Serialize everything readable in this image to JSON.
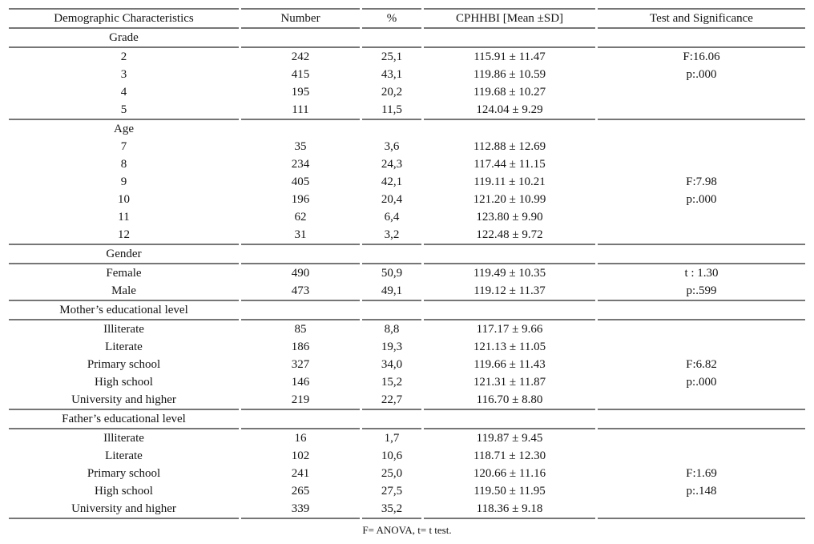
{
  "table": {
    "columns": [
      "Demographic Characteristics",
      "Number",
      "%",
      "CPHHBI [Mean ±SD]",
      "Test and Significance"
    ],
    "sections": [
      {
        "label": "Grade",
        "divider_below": true,
        "rows": [
          {
            "label": "2",
            "number": "242",
            "percent": "25,1",
            "cphhbi": "115.91 ± 11.47",
            "test": "F:16.06"
          },
          {
            "label": "3",
            "number": "415",
            "percent": "43,1",
            "cphhbi": "119.86 ± 10.59",
            "test": "p:.000"
          },
          {
            "label": "4",
            "number": "195",
            "percent": "20,2",
            "cphhbi": "119.68 ± 10.27",
            "test": ""
          },
          {
            "label": "5",
            "number": "111",
            "percent": "11,5",
            "cphhbi": "124.04 ± 9.29",
            "test": ""
          }
        ]
      },
      {
        "label": "Age",
        "divider_below": false,
        "rows": [
          {
            "label": "7",
            "number": "35",
            "percent": "3,6",
            "cphhbi": "112.88 ± 12.69",
            "test": ""
          },
          {
            "label": "8",
            "number": "234",
            "percent": "24,3",
            "cphhbi": "117.44 ± 11.15",
            "test": ""
          },
          {
            "label": "9",
            "number": "405",
            "percent": "42,1",
            "cphhbi": "119.11 ± 10.21",
            "test": "F:7.98"
          },
          {
            "label": "10",
            "number": "196",
            "percent": "20,4",
            "cphhbi": "121.20 ± 10.99",
            "test": "p:.000"
          },
          {
            "label": "11",
            "number": "62",
            "percent": "6,4",
            "cphhbi": "123.80 ± 9.90",
            "test": ""
          },
          {
            "label": "12",
            "number": "31",
            "percent": "3,2",
            "cphhbi": "122.48 ± 9.72",
            "test": ""
          }
        ]
      },
      {
        "label": "Gender",
        "divider_below": true,
        "rows": [
          {
            "label": "Female",
            "number": "490",
            "percent": "50,9",
            "cphhbi": "119.49 ± 10.35",
            "test": "t : 1.30"
          },
          {
            "label": "Male",
            "number": "473",
            "percent": "49,1",
            "cphhbi": "119.12 ± 11.37",
            "test": "p:.599"
          }
        ]
      },
      {
        "label": "Mother’s educational level",
        "divider_below": true,
        "rows": [
          {
            "label": "Illiterate",
            "number": "85",
            "percent": "8,8",
            "cphhbi": "117.17 ± 9.66",
            "test": ""
          },
          {
            "label": "Literate",
            "number": "186",
            "percent": "19,3",
            "cphhbi": "121.13 ± 11.05",
            "test": ""
          },
          {
            "label": "Primary school",
            "number": "327",
            "percent": "34,0",
            "cphhbi": "119.66 ± 11.43",
            "test": "F:6.82"
          },
          {
            "label": "High school",
            "number": "146",
            "percent": "15,2",
            "cphhbi": "121.31 ± 11.87",
            "test": "p:.000"
          },
          {
            "label": "University and higher",
            "number": "219",
            "percent": "22,7",
            "cphhbi": "116.70 ± 8.80",
            "test": ""
          }
        ]
      },
      {
        "label": "Father’s educational level",
        "divider_below": true,
        "rows": [
          {
            "label": "Illiterate",
            "number": "16",
            "percent": "1,7",
            "cphhbi": "119.87 ± 9.45",
            "test": ""
          },
          {
            "label": "Literate",
            "number": "102",
            "percent": "10,6",
            "cphhbi": "118.71 ± 12.30",
            "test": ""
          },
          {
            "label": "Primary school",
            "number": "241",
            "percent": "25,0",
            "cphhbi": "120.66 ± 11.16",
            "test": "F:1.69"
          },
          {
            "label": "High school",
            "number": "265",
            "percent": "27,5",
            "cphhbi": "119.50 ± 11.95",
            "test": "p:.148"
          },
          {
            "label": "University and higher",
            "number": "339",
            "percent": "35,2",
            "cphhbi": "118.36 ± 9.18",
            "test": ""
          }
        ]
      }
    ],
    "footnote": "F= ANOVA, t= t test.",
    "line_color": "#767676"
  }
}
